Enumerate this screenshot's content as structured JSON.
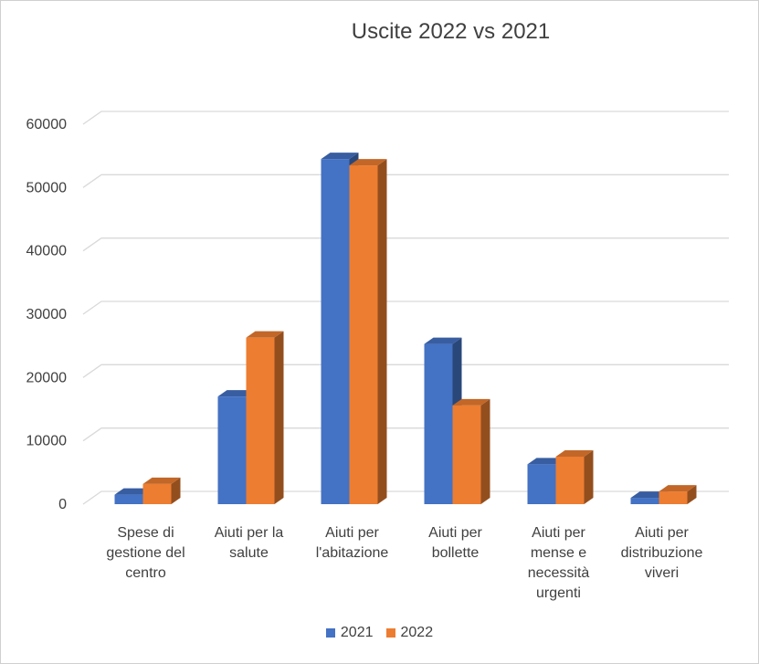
{
  "chart_data": {
    "type": "bar",
    "title": "Uscite 2022 vs 2021",
    "categories": [
      [
        "Spese di",
        "gestione del",
        "centro"
      ],
      [
        "Aiuti per la",
        "salute"
      ],
      [
        "Aiuti per",
        "l'abitazione"
      ],
      [
        "Aiuti per",
        "bollette"
      ],
      [
        "Aiuti per",
        "mense e",
        "necessità",
        "urgenti"
      ],
      [
        "Aiuti per",
        "distribuzione",
        "viveri"
      ]
    ],
    "series": [
      {
        "name": "2021",
        "color": "#4472C4",
        "values": [
          1500,
          17000,
          54500,
          25300,
          6300,
          1000
        ]
      },
      {
        "name": "2022",
        "color": "#ED7D31",
        "values": [
          3200,
          26300,
          53500,
          15600,
          7500,
          2000
        ]
      }
    ],
    "yticks": [
      "0",
      "10000",
      "20000",
      "30000",
      "40000",
      "50000",
      "60000"
    ],
    "ylim": [
      0,
      60000
    ],
    "grid": true,
    "legend": "bottom"
  }
}
